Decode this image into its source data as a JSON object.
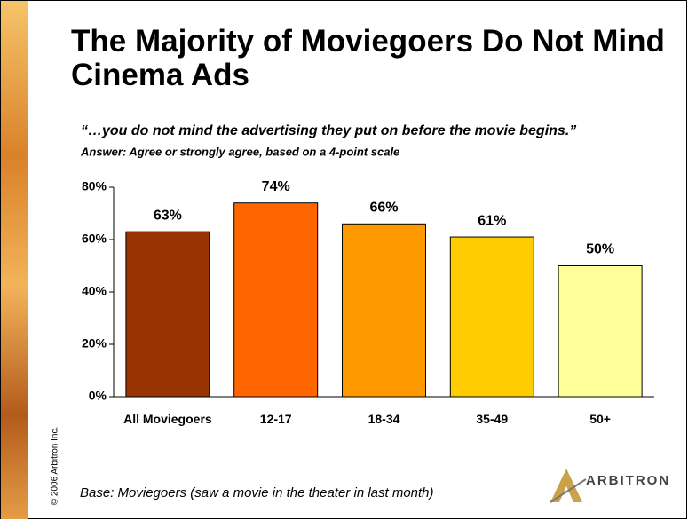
{
  "chart_data": {
    "type": "bar",
    "title": "The Majority of Moviegoers Do Not Mind Cinema Ads",
    "subtitle": "“…you do not mind the advertising they put on before the movie begins.”",
    "note": "Answer:  Agree or strongly agree, based on a 4-point scale",
    "categories": [
      "All Moviegoers",
      "12-17",
      "18-34",
      "35-49",
      "50+"
    ],
    "values": [
      63,
      74,
      66,
      61,
      50
    ],
    "value_labels": [
      "63%",
      "74%",
      "66%",
      "61%",
      "50%"
    ],
    "colors": [
      "#993300",
      "#ff6600",
      "#ff9900",
      "#ffcc00",
      "#ffff99"
    ],
    "ylim": [
      0,
      80
    ],
    "yticks": [
      {
        "value": 0,
        "label": "0%"
      },
      {
        "value": 20,
        "label": "20%"
      },
      {
        "value": 40,
        "label": "40%"
      },
      {
        "value": 60,
        "label": "60%"
      },
      {
        "value": 80,
        "label": "80%"
      }
    ],
    "grid": false,
    "footnote": "Base:  Moviegoers (saw a movie in the theater in last month)",
    "copyright": "© 2006 Arbitron Inc.",
    "logo": "ARBITRON"
  }
}
